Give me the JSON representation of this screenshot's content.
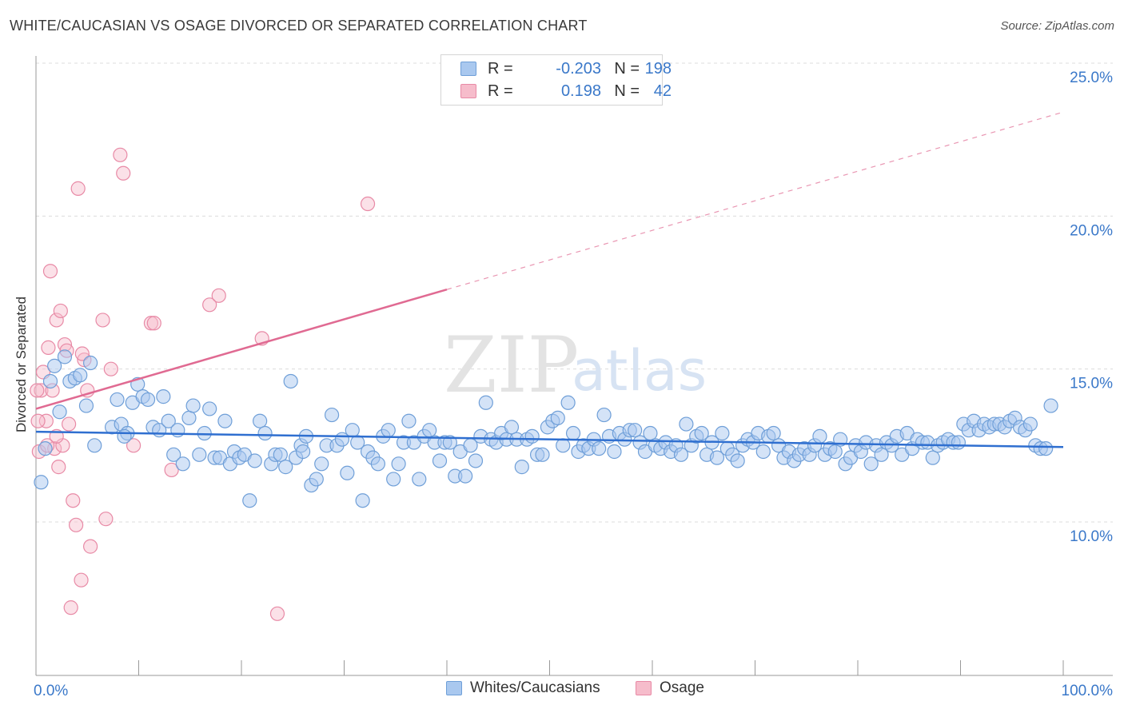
{
  "header": {
    "title": "WHITE/CAUCASIAN VS OSAGE DIVORCED OR SEPARATED CORRELATION CHART",
    "source": "Source: ZipAtlas.com"
  },
  "legend": {
    "rows": [
      {
        "r_label": "R =",
        "r_value": "-0.203",
        "n_label": "N =",
        "n_value": "198"
      },
      {
        "r_label": "R =",
        "r_value": "0.198",
        "n_label": "N =",
        "n_value": "42"
      }
    ]
  },
  "bottom_legend": {
    "items": [
      {
        "label": "Whites/Caucasians"
      },
      {
        "label": "Osage"
      }
    ]
  },
  "colors": {
    "blue_fill": "#a9c8ef",
    "blue_stroke": "#6f9fd8",
    "blue_line": "#2f6fd0",
    "pink_fill": "#f6bccb",
    "pink_stroke": "#e88aa6",
    "pink_line": "#e06a92",
    "tick_label": "#3a78c9",
    "grid": "#dcdcdc"
  },
  "chart_data": {
    "type": "scatter",
    "title": "WHITE/CAUCASIAN VS OSAGE DIVORCED OR SEPARATED CORRELATION CHART",
    "xlabel": "",
    "ylabel": "Divorced or Separated",
    "xlim": [
      0,
      100
    ],
    "ylim": [
      5.0,
      25.5
    ],
    "x_tick_labels": [
      {
        "v": 0,
        "label": "0.0%"
      },
      {
        "v": 100,
        "label": "100.0%"
      }
    ],
    "y_tick_labels": [
      {
        "v": 10,
        "label": "10.0%"
      },
      {
        "v": 15,
        "label": "15.0%"
      },
      {
        "v": 20,
        "label": "20.0%"
      },
      {
        "v": 25,
        "label": "25.0%"
      }
    ],
    "watermark": {
      "zip": "ZIP",
      "atlas": "atlas"
    },
    "series": [
      {
        "name": "Whites/Caucasians",
        "trend": {
          "x0": 0,
          "y0": 12.95,
          "x1": 100,
          "y1": 12.45
        },
        "points": [
          [
            0.5,
            11.3
          ],
          [
            0.9,
            12.4
          ],
          [
            1.4,
            14.6
          ],
          [
            1.8,
            15.1
          ],
          [
            2.3,
            13.6
          ],
          [
            2.8,
            15.4
          ],
          [
            3.3,
            14.6
          ],
          [
            3.8,
            14.7
          ],
          [
            4.3,
            14.8
          ],
          [
            4.9,
            13.8
          ],
          [
            5.3,
            15.2
          ],
          [
            5.7,
            12.5
          ],
          [
            7.4,
            13.1
          ],
          [
            7.9,
            14.0
          ],
          [
            8.3,
            13.2
          ],
          [
            8.9,
            12.9
          ],
          [
            9.4,
            13.9
          ],
          [
            9.9,
            14.5
          ],
          [
            10.4,
            14.1
          ],
          [
            10.9,
            14.0
          ],
          [
            11.4,
            13.1
          ],
          [
            12.0,
            13.0
          ],
          [
            12.4,
            14.1
          ],
          [
            12.9,
            13.3
          ],
          [
            13.4,
            12.2
          ],
          [
            13.8,
            13.0
          ],
          [
            14.3,
            11.9
          ],
          [
            14.9,
            13.4
          ],
          [
            15.3,
            13.8
          ],
          [
            15.9,
            12.2
          ],
          [
            16.4,
            12.9
          ],
          [
            16.9,
            13.7
          ],
          [
            17.4,
            12.1
          ],
          [
            17.9,
            12.1
          ],
          [
            18.4,
            13.3
          ],
          [
            18.9,
            11.9
          ],
          [
            19.3,
            12.3
          ],
          [
            19.8,
            12.1
          ],
          [
            20.3,
            12.2
          ],
          [
            20.8,
            10.7
          ],
          [
            21.3,
            12.0
          ],
          [
            21.8,
            13.3
          ],
          [
            22.3,
            12.9
          ],
          [
            22.9,
            11.9
          ],
          [
            23.3,
            12.2
          ],
          [
            23.8,
            12.2
          ],
          [
            24.3,
            11.8
          ],
          [
            24.8,
            14.6
          ],
          [
            25.3,
            12.1
          ],
          [
            25.8,
            12.5
          ],
          [
            26.3,
            12.8
          ],
          [
            26.8,
            11.2
          ],
          [
            27.3,
            11.4
          ],
          [
            27.8,
            11.9
          ],
          [
            28.3,
            12.5
          ],
          [
            28.8,
            13.5
          ],
          [
            29.3,
            12.5
          ],
          [
            29.8,
            12.7
          ],
          [
            30.3,
            11.6
          ],
          [
            30.8,
            13.0
          ],
          [
            31.3,
            12.6
          ],
          [
            31.8,
            10.7
          ],
          [
            32.3,
            12.3
          ],
          [
            32.8,
            12.1
          ],
          [
            33.3,
            11.9
          ],
          [
            33.8,
            12.8
          ],
          [
            34.3,
            13.0
          ],
          [
            34.8,
            11.4
          ],
          [
            35.3,
            11.9
          ],
          [
            35.8,
            12.6
          ],
          [
            36.3,
            13.3
          ],
          [
            36.8,
            12.6
          ],
          [
            37.3,
            11.4
          ],
          [
            37.8,
            12.8
          ],
          [
            38.3,
            13.0
          ],
          [
            38.8,
            12.6
          ],
          [
            39.3,
            12.0
          ],
          [
            39.8,
            12.6
          ],
          [
            40.3,
            12.6
          ],
          [
            40.8,
            11.5
          ],
          [
            41.3,
            12.3
          ],
          [
            41.8,
            11.5
          ],
          [
            42.3,
            12.5
          ],
          [
            42.8,
            12.0
          ],
          [
            43.3,
            12.8
          ],
          [
            43.8,
            13.9
          ],
          [
            44.3,
            12.7
          ],
          [
            44.8,
            12.6
          ],
          [
            45.3,
            12.9
          ],
          [
            45.8,
            12.7
          ],
          [
            46.3,
            13.1
          ],
          [
            46.8,
            12.7
          ],
          [
            47.3,
            11.8
          ],
          [
            47.8,
            12.7
          ],
          [
            48.3,
            12.8
          ],
          [
            48.8,
            12.2
          ],
          [
            49.3,
            12.2
          ],
          [
            49.8,
            13.1
          ],
          [
            50.3,
            13.3
          ],
          [
            50.8,
            13.4
          ],
          [
            51.3,
            12.5
          ],
          [
            51.8,
            13.9
          ],
          [
            52.3,
            12.9
          ],
          [
            52.8,
            12.3
          ],
          [
            53.3,
            12.5
          ],
          [
            53.8,
            12.4
          ],
          [
            54.3,
            12.7
          ],
          [
            54.8,
            12.4
          ],
          [
            55.3,
            13.5
          ],
          [
            55.8,
            12.8
          ],
          [
            56.3,
            12.3
          ],
          [
            56.8,
            12.9
          ],
          [
            57.3,
            12.7
          ],
          [
            57.8,
            13.0
          ],
          [
            58.3,
            13.0
          ],
          [
            58.8,
            12.6
          ],
          [
            59.3,
            12.3
          ],
          [
            59.8,
            12.9
          ],
          [
            60.3,
            12.5
          ],
          [
            60.8,
            12.4
          ],
          [
            61.3,
            12.6
          ],
          [
            61.8,
            12.3
          ],
          [
            62.3,
            12.5
          ],
          [
            62.8,
            12.2
          ],
          [
            63.3,
            13.2
          ],
          [
            63.8,
            12.5
          ],
          [
            64.3,
            12.8
          ],
          [
            64.8,
            12.9
          ],
          [
            65.3,
            12.2
          ],
          [
            65.8,
            12.6
          ],
          [
            66.3,
            12.1
          ],
          [
            66.8,
            12.9
          ],
          [
            67.3,
            12.4
          ],
          [
            67.8,
            12.2
          ],
          [
            68.3,
            12.0
          ],
          [
            68.8,
            12.5
          ],
          [
            69.3,
            12.7
          ],
          [
            69.8,
            12.6
          ],
          [
            70.3,
            12.9
          ],
          [
            70.8,
            12.3
          ],
          [
            71.3,
            12.8
          ],
          [
            71.8,
            12.9
          ],
          [
            72.3,
            12.5
          ],
          [
            72.8,
            12.1
          ],
          [
            73.3,
            12.3
          ],
          [
            73.8,
            12.0
          ],
          [
            74.3,
            12.2
          ],
          [
            74.8,
            12.4
          ],
          [
            75.3,
            12.2
          ],
          [
            75.8,
            12.5
          ],
          [
            76.3,
            12.8
          ],
          [
            76.8,
            12.2
          ],
          [
            77.3,
            12.4
          ],
          [
            77.8,
            12.3
          ],
          [
            78.3,
            12.7
          ],
          [
            78.8,
            11.9
          ],
          [
            79.3,
            12.1
          ],
          [
            79.8,
            12.5
          ],
          [
            80.3,
            12.3
          ],
          [
            80.8,
            12.6
          ],
          [
            81.3,
            11.9
          ],
          [
            81.8,
            12.5
          ],
          [
            82.3,
            12.2
          ],
          [
            82.8,
            12.6
          ],
          [
            83.3,
            12.5
          ],
          [
            83.8,
            12.8
          ],
          [
            84.3,
            12.2
          ],
          [
            84.8,
            12.9
          ],
          [
            85.3,
            12.4
          ],
          [
            85.8,
            12.7
          ],
          [
            86.3,
            12.6
          ],
          [
            86.8,
            12.6
          ],
          [
            87.3,
            12.1
          ],
          [
            87.8,
            12.5
          ],
          [
            88.3,
            12.6
          ],
          [
            88.8,
            12.7
          ],
          [
            89.3,
            12.6
          ],
          [
            89.8,
            12.6
          ],
          [
            90.3,
            13.2
          ],
          [
            90.8,
            13.0
          ],
          [
            91.3,
            13.3
          ],
          [
            91.8,
            13.0
          ],
          [
            92.3,
            13.2
          ],
          [
            92.8,
            13.1
          ],
          [
            93.3,
            13.2
          ],
          [
            93.8,
            13.2
          ],
          [
            94.3,
            13.1
          ],
          [
            94.8,
            13.3
          ],
          [
            95.3,
            13.4
          ],
          [
            95.8,
            13.1
          ],
          [
            96.3,
            13.0
          ],
          [
            96.8,
            13.2
          ],
          [
            97.3,
            12.5
          ],
          [
            97.8,
            12.4
          ],
          [
            98.3,
            12.4
          ],
          [
            98.8,
            13.8
          ],
          [
            8.6,
            12.8
          ],
          [
            26.0,
            12.3
          ]
        ]
      },
      {
        "name": "Osage",
        "trend": {
          "x0": 0,
          "y0": 13.7,
          "x1": 40,
          "y1": 17.6,
          "dashed_to_x": 100,
          "dashed_to_y": 23.4
        },
        "points": [
          [
            0.3,
            12.3
          ],
          [
            0.5,
            14.3
          ],
          [
            0.7,
            14.9
          ],
          [
            1.0,
            13.3
          ],
          [
            1.2,
            15.7
          ],
          [
            1.4,
            18.2
          ],
          [
            1.6,
            14.3
          ],
          [
            1.8,
            12.4
          ],
          [
            2.0,
            16.6
          ],
          [
            2.2,
            11.8
          ],
          [
            2.4,
            16.9
          ],
          [
            2.6,
            12.5
          ],
          [
            2.8,
            15.8
          ],
          [
            3.0,
            15.6
          ],
          [
            3.2,
            13.2
          ],
          [
            3.4,
            7.2
          ],
          [
            3.6,
            10.7
          ],
          [
            3.9,
            9.9
          ],
          [
            4.1,
            20.9
          ],
          [
            4.4,
            8.1
          ],
          [
            4.7,
            15.3
          ],
          [
            5.0,
            14.3
          ],
          [
            5.3,
            9.2
          ],
          [
            6.5,
            16.6
          ],
          [
            6.8,
            10.1
          ],
          [
            7.3,
            15.0
          ],
          [
            8.2,
            22.0
          ],
          [
            8.5,
            21.4
          ],
          [
            9.5,
            12.5
          ],
          [
            11.2,
            16.5
          ],
          [
            11.5,
            16.5
          ],
          [
            13.2,
            11.7
          ],
          [
            16.9,
            17.1
          ],
          [
            17.8,
            17.4
          ],
          [
            22.0,
            16.0
          ],
          [
            23.5,
            7.0
          ],
          [
            32.3,
            20.4
          ],
          [
            0.1,
            14.3
          ],
          [
            0.2,
            13.3
          ],
          [
            4.5,
            15.5
          ],
          [
            1.1,
            12.5
          ],
          [
            2.0,
            12.8
          ]
        ]
      }
    ]
  }
}
